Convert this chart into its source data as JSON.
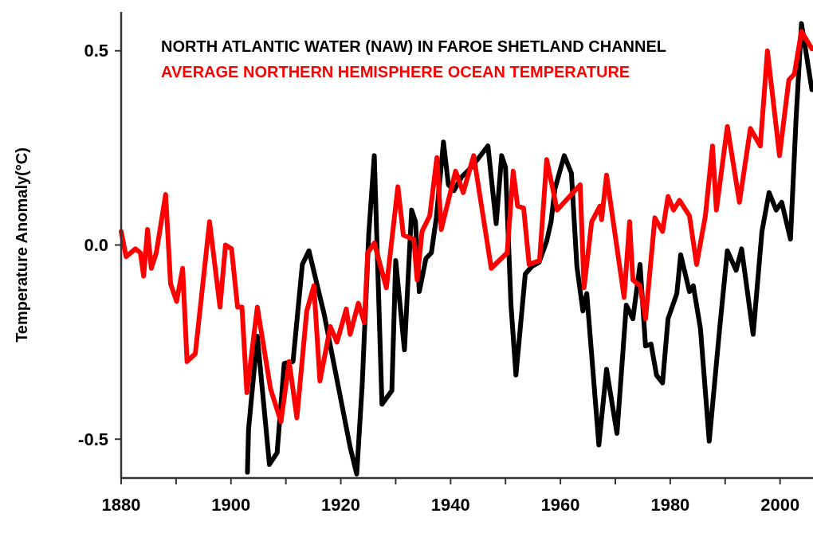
{
  "chart_data": {
    "type": "line",
    "ylabel": "Temperature Anomaly(°C)",
    "xlim": [
      1880,
      2006
    ],
    "ylim": [
      -0.6,
      0.6
    ],
    "xticks": [
      1880,
      {
        "value": 1890,
        "label": null
      },
      1900,
      {
        "value": 1910,
        "label": null
      },
      1920,
      {
        "value": 1930,
        "label": null
      },
      1940,
      {
        "value": 1950,
        "label": null
      },
      1960,
      {
        "value": 1970,
        "label": null
      },
      1980,
      {
        "value": 1990,
        "label": null
      },
      2000
    ],
    "yticks": [
      {
        "value": -0.5,
        "label": "-0.5"
      },
      {
        "value": 0,
        "label": "0.0"
      },
      0.5
    ],
    "legend": "top left",
    "grid": false,
    "marker": "none",
    "line_style": "solid",
    "series": [
      {
        "name": "NORTH ATLANTIC WATER (NAW) IN FAROE SHETLAND CHANNEL",
        "color": "#000000",
        "x": [
          1903.0,
          1903.2,
          1904.8,
          1907.0,
          1908.4,
          1909.7,
          1911.3,
          1913.0,
          1914.2,
          1917.0,
          1921.7,
          1922.9,
          1923.9,
          1925.1,
          1926.1,
          1926.8,
          1927.5,
          1929.3,
          1930.0,
          1931.6,
          1932.9,
          1933.6,
          1934.3,
          1935.5,
          1936.5,
          1937.4,
          1938.7,
          1939.6,
          1940.6,
          1942.0,
          1943.8,
          1946.8,
          1948.3,
          1949.3,
          1950.0,
          1951.0,
          1951.9,
          1953.6,
          1954.8,
          1956.1,
          1957.5,
          1958.3,
          1959.0,
          1960.7,
          1962.0,
          1963.0,
          1964.1,
          1964.8,
          1967.0,
          1968.4,
          1970.3,
          1972.0,
          1973.2,
          1974.5,
          1975.5,
          1976.5,
          1977.5,
          1978.6,
          1979.6,
          1981.2,
          1981.9,
          1983.5,
          1984.2,
          1985.5,
          1987.1,
          1989.0,
          1990.4,
          1992.0,
          1993.0,
          1995.1,
          1996.7,
          1998.0,
          1999.3,
          2000.3,
          2001.9,
          2002.9,
          2003.9,
          2005.8
        ],
        "values": [
          -0.585,
          -0.475,
          -0.235,
          -0.565,
          -0.535,
          -0.305,
          -0.3,
          -0.05,
          -0.015,
          -0.18,
          -0.52,
          -0.59,
          -0.36,
          0.03,
          0.23,
          -0.09,
          -0.41,
          -0.375,
          -0.04,
          -0.27,
          0.09,
          0.06,
          -0.12,
          -0.035,
          -0.02,
          0.07,
          0.265,
          0.155,
          0.14,
          0.175,
          0.2,
          0.255,
          0.055,
          0.23,
          0.2,
          -0.155,
          -0.335,
          -0.075,
          -0.055,
          -0.045,
          0.01,
          0.06,
          0.145,
          0.23,
          0.185,
          -0.055,
          -0.17,
          -0.125,
          -0.515,
          -0.32,
          -0.485,
          -0.155,
          -0.19,
          -0.05,
          -0.26,
          -0.255,
          -0.335,
          -0.355,
          -0.19,
          -0.125,
          -0.025,
          -0.12,
          -0.105,
          -0.215,
          -0.505,
          -0.215,
          -0.015,
          -0.065,
          -0.01,
          -0.23,
          0.035,
          0.135,
          0.09,
          0.11,
          0.015,
          0.32,
          0.57,
          0.4
        ]
      },
      {
        "name": "AVERAGE NORTHERN HEMISPHERE OCEAN TEMPERATURE",
        "color": "#ff0000",
        "x": [
          1880.0,
          1880.9,
          1882.6,
          1883.5,
          1884.1,
          1884.8,
          1885.5,
          1886.4,
          1888.1,
          1889.0,
          1890.1,
          1891.2,
          1892.0,
          1893.5,
          1896.1,
          1898.0,
          1899.0,
          1900.1,
          1901.2,
          1902.0,
          1902.9,
          1904.8,
          1907.2,
          1909.1,
          1910.6,
          1912.0,
          1913.8,
          1915.1,
          1916.2,
          1918.1,
          1919.3,
          1921.0,
          1921.7,
          1923.2,
          1924.3,
          1924.9,
          1926.1,
          1928.3,
          1930.4,
          1931.4,
          1933.3,
          1933.9,
          1934.8,
          1936.2,
          1937.5,
          1938.3,
          1940.9,
          1942.3,
          1944.2,
          1947.4,
          1950.3,
          1951.4,
          1952.2,
          1953.3,
          1954.3,
          1956.2,
          1957.5,
          1959.4,
          1963.6,
          1964.3,
          1965.7,
          1967.2,
          1967.5,
          1968.4,
          1971.6,
          1972.6,
          1973.2,
          1974.5,
          1975.5,
          1977.2,
          1978.6,
          1979.6,
          1980.6,
          1981.7,
          1983.5,
          1984.8,
          1986.4,
          1987.7,
          1988.4,
          1990.4,
          1992.6,
          1994.6,
          1996.4,
          1997.7,
          1999.9,
          2001.6,
          2002.6,
          2003.9,
          2005.8
        ],
        "values": [
          0.035,
          -0.03,
          -0.01,
          -0.02,
          -0.08,
          0.04,
          -0.06,
          -0.02,
          0.13,
          -0.1,
          -0.145,
          -0.06,
          -0.3,
          -0.28,
          0.06,
          -0.16,
          0.0,
          -0.01,
          -0.16,
          -0.16,
          -0.38,
          -0.16,
          -0.37,
          -0.455,
          -0.3,
          -0.445,
          -0.17,
          -0.105,
          -0.35,
          -0.21,
          -0.25,
          -0.165,
          -0.23,
          -0.15,
          -0.2,
          -0.02,
          0.005,
          -0.11,
          0.15,
          0.025,
          0.015,
          -0.09,
          0.035,
          0.075,
          0.225,
          0.04,
          0.19,
          0.135,
          0.23,
          -0.06,
          -0.02,
          0.19,
          0.1,
          0.095,
          -0.05,
          -0.04,
          0.22,
          0.09,
          0.155,
          -0.11,
          0.06,
          0.1,
          0.065,
          0.18,
          -0.135,
          0.06,
          -0.09,
          -0.105,
          -0.19,
          0.07,
          0.035,
          0.125,
          0.09,
          0.115,
          0.075,
          -0.05,
          0.075,
          0.255,
          0.09,
          0.305,
          0.11,
          0.3,
          0.255,
          0.5,
          0.23,
          0.425,
          0.44,
          0.55,
          0.505
        ]
      }
    ]
  }
}
